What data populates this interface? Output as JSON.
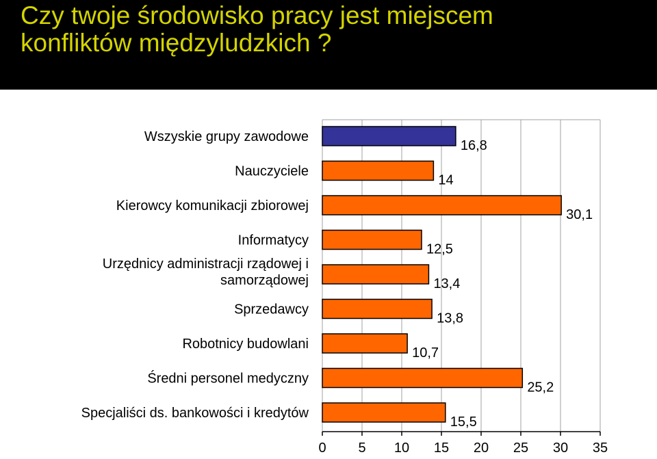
{
  "header": {
    "title_line1": "Czy twoje środowisko pracy jest miejscem",
    "title_line2": "konfliktów międzyludzkich ?"
  },
  "colors": {
    "background": "#000000",
    "title_text": "#d4d400",
    "highlight_bar": "#333399",
    "bar": "#ff6600",
    "axis": "#000000"
  },
  "chart_data": {
    "type": "bar",
    "orientation": "horizontal",
    "title": "Czy twoje środowisko pracy jest miejscem konfliktów międzyludzkich ?",
    "categories": [
      [
        "Wszyskie grupy zawodowe"
      ],
      [
        "Nauczyciele"
      ],
      [
        "Kierowcy komunikacji zbiorowej"
      ],
      [
        "Informatycy"
      ],
      [
        "Urzędnicy administracji rządowej i",
        "samorządowej"
      ],
      [
        "Sprzedawcy"
      ],
      [
        "Robotnicy budowlani"
      ],
      [
        "Średni personel medyczny"
      ],
      [
        "Specjaliści ds. bankowości i kredytów"
      ]
    ],
    "values": [
      16.8,
      14,
      30.1,
      12.5,
      13.4,
      13.8,
      10.7,
      25.2,
      15.5
    ],
    "value_labels": [
      "16,8",
      "14",
      "30,1",
      "12,5",
      "13,4",
      "13,8",
      "10,7",
      "25,2",
      "15,5"
    ],
    "bar_colors": [
      "#333399",
      "#ff6600",
      "#ff6600",
      "#ff6600",
      "#ff6600",
      "#ff6600",
      "#ff6600",
      "#ff6600",
      "#ff6600"
    ],
    "xlim": [
      0,
      35
    ],
    "xticks": [
      0,
      5,
      10,
      15,
      20,
      25,
      30,
      35
    ],
    "grid": true,
    "legend": false
  }
}
